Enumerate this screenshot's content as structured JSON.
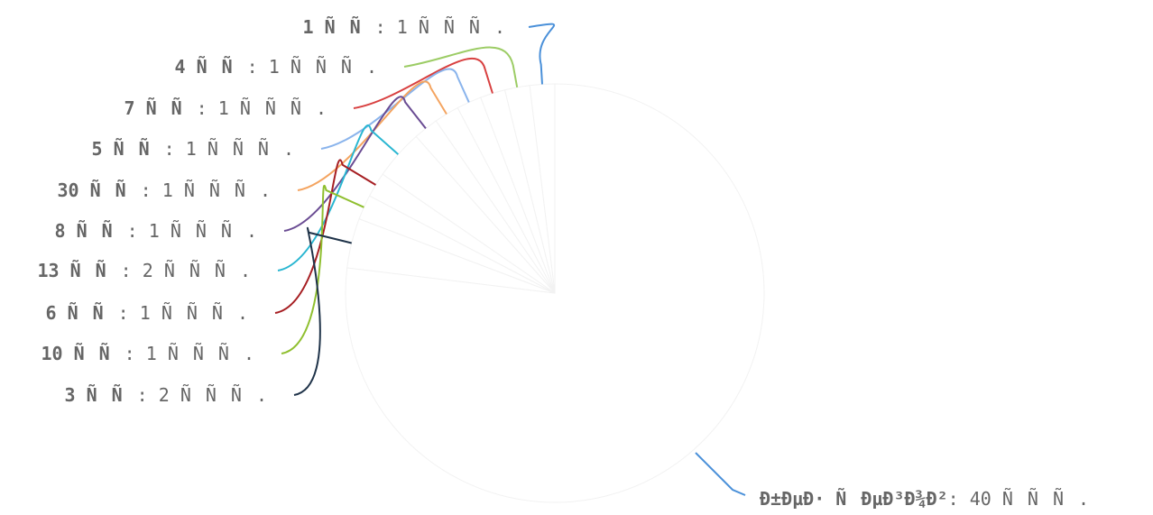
{
  "chart_data": {
    "type": "pie",
    "title": "",
    "total_label": "",
    "slices": [
      {
        "name": "1 ÑÑ",
        "value_text": "1 ÑÑÑ.",
        "value": 1,
        "color": "#4a90d9"
      },
      {
        "name": "4 ÑÑ",
        "value_text": "1 ÑÑÑ.",
        "value": 1,
        "color": "#9ccc65"
      },
      {
        "name": "7 ÑÑ",
        "value_text": "1 ÑÑÑ.",
        "value": 1,
        "color": "#d84040"
      },
      {
        "name": "5 ÑÑ",
        "value_text": "1 ÑÑÑ.",
        "value": 1,
        "color": "#8ab4ec"
      },
      {
        "name": "30 ÑÑ",
        "value_text": "1 ÑÑÑ.",
        "value": 1,
        "color": "#f4a460"
      },
      {
        "name": "8 ÑÑ",
        "value_text": "1 ÑÑÑ.",
        "value": 1,
        "color": "#6a4c93"
      },
      {
        "name": "13 ÑÑ",
        "value_text": "2 ÑÑÑ.",
        "value": 2,
        "color": "#29b6d1"
      },
      {
        "name": "6 ÑÑ",
        "value_text": "1 ÑÑÑ.",
        "value": 1,
        "color": "#a61e22"
      },
      {
        "name": "10 ÑÑ",
        "value_text": "1 ÑÑÑ.",
        "value": 1,
        "color": "#8fbf2f"
      },
      {
        "name": "3 ÑÑ",
        "value_text": "2 ÑÑÑ.",
        "value": 2,
        "color": "#1f3349"
      },
      {
        "name": "Ð±ÐµÐ· ÑÐµÐ³Ð¾Ð²",
        "value_text": "40 ÑÑÑ.",
        "value": 40,
        "color": "#ffffff"
      }
    ]
  }
}
